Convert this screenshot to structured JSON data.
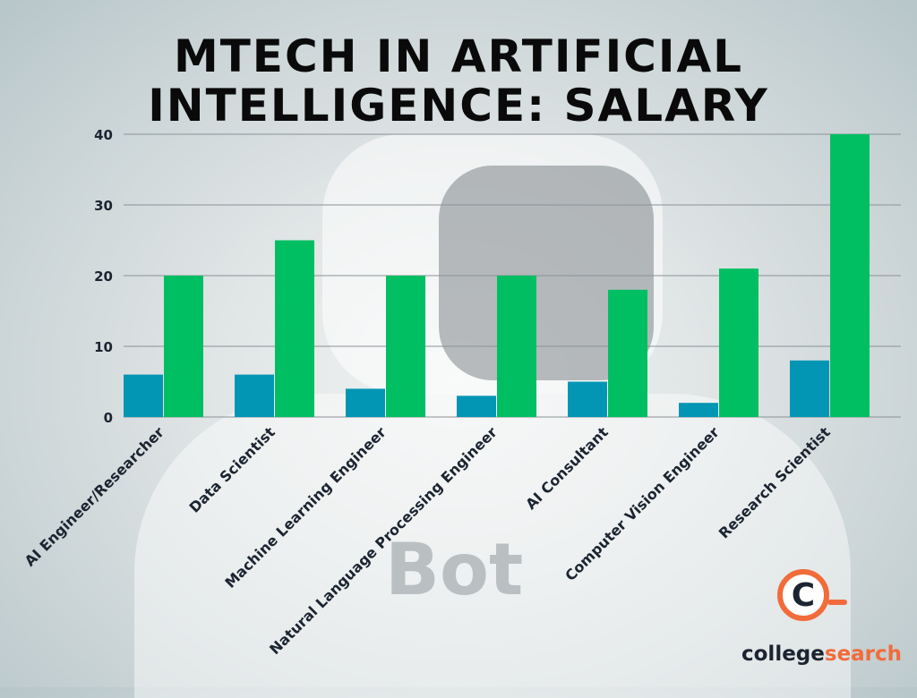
{
  "title_line1": "MTECH IN ARTIFICIAL",
  "title_line2": "INTELLIGENCE: SALARY",
  "logo": {
    "part1": "college",
    "part2": "search",
    "icon": "c-magnifier-icon"
  },
  "chart_data": {
    "type": "bar",
    "title": "MTECH IN ARTIFICIAL INTELLIGENCE: SALARY",
    "categories": [
      "AI Engineer/Researcher",
      "Data Scientist",
      "Machine Learning Engineer",
      "Natural Language Processing Engineer",
      "AI Consultant",
      "Computer Vision Engineer",
      "Research Scientist"
    ],
    "series": [
      {
        "values": [
          6,
          6,
          4,
          3,
          5,
          2,
          8
        ],
        "color": "#0396b4"
      },
      {
        "values": [
          20,
          25,
          20,
          20,
          18,
          21,
          40
        ],
        "color": "#00bf63"
      }
    ],
    "ylim": [
      0,
      40
    ],
    "yticks": [
      "0",
      "10",
      "20",
      "30",
      "40"
    ],
    "grid": true,
    "xlabel": "",
    "ylabel": ""
  }
}
